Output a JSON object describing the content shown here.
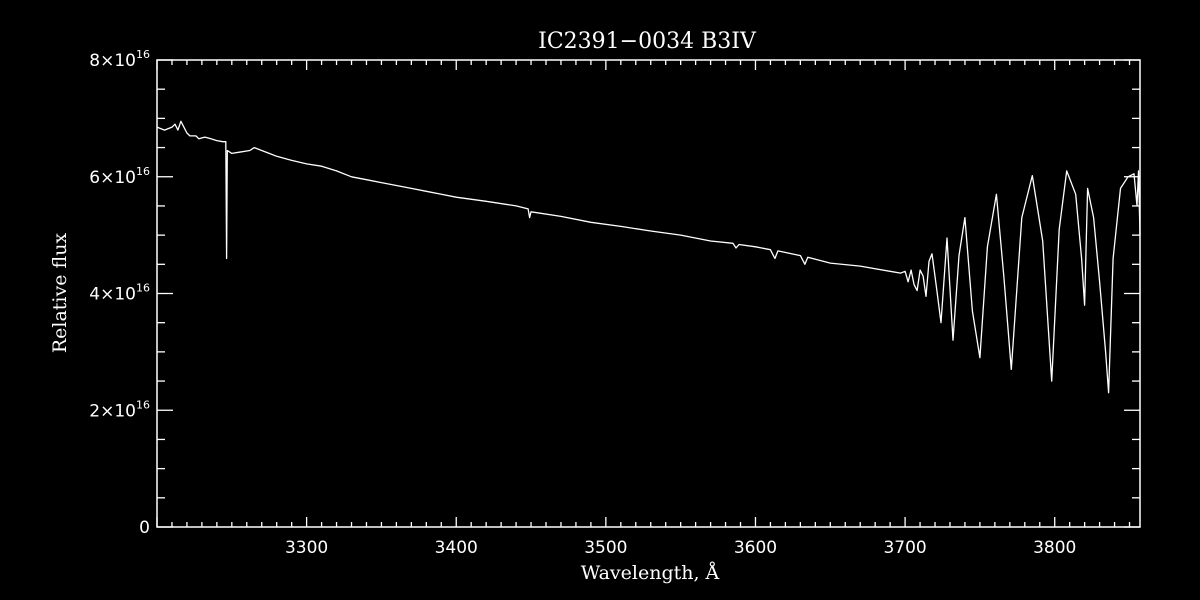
{
  "chart_data": {
    "type": "line",
    "title": "IC2391−0034   B3IV",
    "xlabel": "Wavelength, Å",
    "ylabel": "Relative flux",
    "xlim": [
      3200,
      3857
    ],
    "ylim": [
      0,
      8e+16
    ],
    "x_ticks": [
      3300,
      3400,
      3500,
      3600,
      3700,
      3800
    ],
    "x_tick_labels": [
      "3300",
      "3400",
      "3500",
      "3600",
      "3700",
      "3800"
    ],
    "y_ticks": [
      {
        "value": 0,
        "mantissa": "0",
        "exponent": ""
      },
      {
        "value": 2e+16,
        "mantissa": "2×10",
        "exponent": "16"
      },
      {
        "value": 4e+16,
        "mantissa": "4×10",
        "exponent": "16"
      },
      {
        "value": 6e+16,
        "mantissa": "6×10",
        "exponent": "16"
      },
      {
        "value": 8e+16,
        "mantissa": "8×10",
        "exponent": "16"
      }
    ],
    "series": [
      {
        "color": "#ffffff",
        "x": [
          3200,
          3205,
          3210,
          3212,
          3214,
          3216,
          3220,
          3222,
          3226,
          3228,
          3232,
          3236,
          3240,
          3244,
          3246,
          3246.5,
          3247,
          3250,
          3255,
          3262,
          3265,
          3270,
          3275,
          3280,
          3290,
          3300,
          3310,
          3320,
          3330,
          3340,
          3350,
          3360,
          3370,
          3380,
          3390,
          3400,
          3420,
          3440,
          3448,
          3449,
          3450,
          3470,
          3490,
          3510,
          3530,
          3550,
          3570,
          3585,
          3587,
          3589,
          3600,
          3610,
          3613,
          3615,
          3630,
          3633,
          3635,
          3650,
          3670,
          3690,
          3697,
          3700,
          3702,
          3704,
          3706,
          3708,
          3710,
          3712,
          3714,
          3716,
          3718,
          3721,
          3724,
          3728,
          3732,
          3736,
          3740,
          3745,
          3750,
          3755,
          3761,
          3766,
          3771,
          3778,
          3785,
          3792,
          3798,
          3803,
          3808,
          3814,
          3818,
          3820,
          3822,
          3826,
          3830,
          3834,
          3836,
          3839,
          3844,
          3849,
          3853,
          3855,
          3856,
          3857
        ],
        "y": [
          6.85e+16,
          6.8e+16,
          6.85e+16,
          6.9e+16,
          6.8e+16,
          6.95e+16,
          6.75e+16,
          6.7e+16,
          6.7e+16,
          6.65e+16,
          6.68e+16,
          6.65e+16,
          6.62e+16,
          6.6e+16,
          6.6e+16,
          4.6e+16,
          6.45e+16,
          6.4e+16,
          6.42e+16,
          6.45e+16,
          6.5e+16,
          6.45e+16,
          6.4e+16,
          6.35e+16,
          6.28e+16,
          6.22e+16,
          6.18e+16,
          6.1e+16,
          6e+16,
          5.95e+16,
          5.9e+16,
          5.85e+16,
          5.8e+16,
          5.75e+16,
          5.7e+16,
          5.65e+16,
          5.58e+16,
          5.5e+16,
          5.45e+16,
          5.3e+16,
          5.4e+16,
          5.32e+16,
          5.22e+16,
          5.15e+16,
          5.07e+16,
          5e+16,
          4.9e+16,
          4.86e+16,
          4.78e+16,
          4.84e+16,
          4.8e+16,
          4.75e+16,
          4.6e+16,
          4.73e+16,
          4.65e+16,
          4.5e+16,
          4.62e+16,
          4.52e+16,
          4.47e+16,
          4.38e+16,
          4.35e+16,
          4.38e+16,
          4.2e+16,
          4.4e+16,
          4.15e+16,
          4.05e+16,
          4.4e+16,
          4.3e+16,
          3.95e+16,
          4.55e+16,
          4.68e+16,
          4.1e+16,
          3.5e+16,
          4.95e+16,
          3.2e+16,
          4.65e+16,
          5.3e+16,
          3.7e+16,
          2.9e+16,
          4.8e+16,
          5.7e+16,
          4.3e+16,
          2.7e+16,
          5.3e+16,
          6.02e+16,
          4.9e+16,
          2.5e+16,
          5.1e+16,
          6.1e+16,
          5.7e+16,
          4.6e+16,
          3.8e+16,
          5.8e+16,
          5.3e+16,
          4.2e+16,
          3e+16,
          2.3e+16,
          4.6e+16,
          5.8e+16,
          6e+16,
          6.05e+16,
          5.5e+16,
          6.1e+16,
          5e+16
        ]
      }
    ],
    "grid": false
  }
}
